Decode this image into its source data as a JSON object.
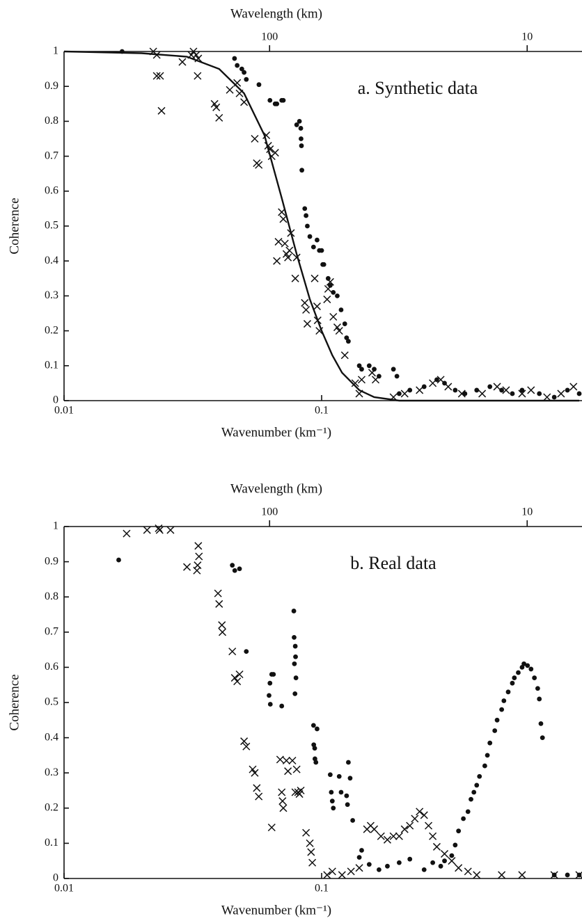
{
  "chart_data": [
    {
      "type": "scatter",
      "annotation": "a. Synthetic data",
      "x_label": "Wavenumber (km⁻¹)",
      "x2_label": "Wavelength (km)",
      "y_label": "Coherence",
      "xscale": "log",
      "xlim": [
        0.01,
        1
      ],
      "xticks": [
        0.01,
        0.1
      ],
      "x2ticks": [
        {
          "value": 0.0628,
          "label": "100"
        },
        {
          "value": 0.628,
          "label": "10"
        }
      ],
      "ylim": [
        0,
        1
      ],
      "yticks": [
        0,
        0.1,
        0.2,
        0.3,
        0.4,
        0.5,
        0.6,
        0.7,
        0.8,
        0.9,
        1
      ],
      "series": [
        {
          "marker": "x",
          "color": "#111111",
          "x": [
            0.0222,
            0.0229,
            0.0229,
            0.0236,
            0.0239,
            0.0288,
            0.0312,
            0.0318,
            0.0326,
            0.0332,
            0.033,
            0.0384,
            0.039,
            0.04,
            0.044,
            0.047,
            0.048,
            0.05,
            0.055,
            0.056,
            0.057,
            0.061,
            0.062,
            0.063,
            0.064,
            0.066,
            0.068,
            0.067,
            0.07,
            0.071,
            0.072,
            0.073,
            0.074,
            0.075,
            0.076,
            0.079,
            0.08,
            0.086,
            0.087,
            0.088,
            0.094,
            0.096,
            0.0965,
            0.098,
            0.105,
            0.106,
            0.108,
            0.111,
            0.115,
            0.117,
            0.123,
            0.135,
            0.14,
            0.143,
            0.157,
            0.162,
            0.19,
            0.21,
            0.24,
            0.27,
            0.29,
            0.31,
            0.35,
            0.42,
            0.48,
            0.52,
            0.6,
            0.65,
            0.75,
            0.85,
            0.95
          ],
          "values": [
            1.0,
            0.99,
            0.93,
            0.93,
            0.83,
            0.97,
            0.99,
            1.0,
            0.99,
            0.98,
            0.93,
            0.85,
            0.84,
            0.81,
            0.89,
            0.91,
            0.88,
            0.855,
            0.75,
            0.68,
            0.675,
            0.76,
            0.73,
            0.72,
            0.7,
            0.71,
            0.455,
            0.4,
            0.54,
            0.52,
            0.45,
            0.42,
            0.41,
            0.43,
            0.48,
            0.35,
            0.41,
            0.28,
            0.26,
            0.22,
            0.35,
            0.27,
            0.23,
            0.2,
            0.29,
            0.32,
            0.34,
            0.24,
            0.21,
            0.2,
            0.13,
            0.05,
            0.02,
            0.06,
            0.08,
            0.06,
            0.01,
            0.02,
            0.03,
            0.05,
            0.06,
            0.04,
            0.02,
            0.02,
            0.04,
            0.03,
            0.02,
            0.03,
            0.01,
            0.02,
            0.04
          ]
        },
        {
          "marker": "dot",
          "color": "#111111",
          "x": [
            0.0168,
            0.0459,
            0.047,
            0.049,
            0.05,
            0.051,
            0.0571,
            0.063,
            0.066,
            0.067,
            0.07,
            0.071,
            0.08,
            0.082,
            0.083,
            0.0832,
            0.0835,
            0.0838,
            0.086,
            0.087,
            0.088,
            0.09,
            0.093,
            0.096,
            0.098,
            0.1,
            0.101,
            0.102,
            0.106,
            0.108,
            0.111,
            0.115,
            0.119,
            0.123,
            0.125,
            0.127,
            0.14,
            0.143,
            0.153,
            0.16,
            0.167,
            0.19,
            0.196,
            0.2,
            0.22,
            0.25,
            0.28,
            0.3,
            0.33,
            0.36,
            0.4,
            0.45,
            0.5,
            0.55,
            0.6,
            0.7,
            0.8,
            0.9,
            1.0
          ],
          "values": [
            1.0,
            0.98,
            0.96,
            0.95,
            0.94,
            0.92,
            0.905,
            0.86,
            0.85,
            0.85,
            0.86,
            0.86,
            0.79,
            0.8,
            0.78,
            0.75,
            0.73,
            0.66,
            0.55,
            0.53,
            0.5,
            0.47,
            0.44,
            0.46,
            0.43,
            0.43,
            0.39,
            0.39,
            0.35,
            0.33,
            0.31,
            0.3,
            0.26,
            0.22,
            0.18,
            0.17,
            0.1,
            0.09,
            0.1,
            0.09,
            0.07,
            0.09,
            0.07,
            0.02,
            0.03,
            0.04,
            0.06,
            0.05,
            0.03,
            0.02,
            0.03,
            0.04,
            0.03,
            0.02,
            0.03,
            0.02,
            0.01,
            0.03,
            0.02
          ]
        },
        {
          "marker": "line",
          "color": "#111111",
          "x": [
            0.01,
            0.02,
            0.03,
            0.04,
            0.05,
            0.06,
            0.07,
            0.08,
            0.09,
            0.1,
            0.11,
            0.12,
            0.14,
            0.16,
            0.2,
            1.0
          ],
          "values": [
            1.0,
            0.995,
            0.985,
            0.95,
            0.88,
            0.76,
            0.58,
            0.42,
            0.29,
            0.2,
            0.13,
            0.08,
            0.03,
            0.01,
            0,
            0
          ]
        }
      ]
    },
    {
      "type": "scatter",
      "annotation": "b. Real data",
      "x_label": "Wavenumber (km⁻¹)",
      "x2_label": "Wavelength (km)",
      "y_label": "Coherence",
      "xscale": "log",
      "xlim": [
        0.01,
        1
      ],
      "xticks": [
        0.01,
        0.1
      ],
      "x2ticks": [
        {
          "value": 0.0628,
          "label": "100"
        },
        {
          "value": 0.628,
          "label": "10"
        }
      ],
      "ylim": [
        0,
        1
      ],
      "yticks": [
        0,
        0.1,
        0.2,
        0.3,
        0.4,
        0.5,
        0.6,
        0.7,
        0.8,
        0.9,
        1
      ],
      "series": [
        {
          "marker": "x",
          "color": "#111111",
          "x": [
            0.0175,
            0.021,
            0.0233,
            0.0235,
            0.0259,
            0.03,
            0.033,
            0.0332,
            0.0334,
            0.0328,
            0.0396,
            0.04,
            0.041,
            0.0412,
            0.045,
            0.046,
            0.047,
            0.048,
            0.05,
            0.051,
            0.054,
            0.055,
            0.056,
            0.057,
            0.064,
            0.069,
            0.07,
            0.0705,
            0.071,
            0.073,
            0.074,
            0.077,
            0.079,
            0.081,
            0.082,
            0.083,
            0.08,
            0.087,
            0.09,
            0.091,
            0.092,
            0.105,
            0.11,
            0.12,
            0.13,
            0.14,
            0.15,
            0.155,
            0.16,
            0.17,
            0.18,
            0.19,
            0.2,
            0.21,
            0.22,
            0.23,
            0.24,
            0.25,
            0.26,
            0.27,
            0.28,
            0.3,
            0.32,
            0.34,
            0.37,
            0.4,
            0.5,
            0.6,
            0.8,
            1.0
          ],
          "values": [
            0.98,
            0.99,
            0.995,
            0.99,
            0.99,
            0.885,
            0.89,
            0.945,
            0.915,
            0.875,
            0.81,
            0.78,
            0.72,
            0.7,
            0.645,
            0.57,
            0.56,
            0.58,
            0.39,
            0.375,
            0.31,
            0.3,
            0.257,
            0.233,
            0.145,
            0.338,
            0.245,
            0.22,
            0.2,
            0.335,
            0.305,
            0.335,
            0.245,
            0.245,
            0.24,
            0.25,
            0.31,
            0.13,
            0.1,
            0.075,
            0.045,
            0.01,
            0.02,
            0.01,
            0.02,
            0.03,
            0.14,
            0.15,
            0.14,
            0.12,
            0.11,
            0.12,
            0.12,
            0.14,
            0.15,
            0.17,
            0.19,
            0.18,
            0.15,
            0.12,
            0.09,
            0.07,
            0.05,
            0.03,
            0.02,
            0.01,
            0.01,
            0.01,
            0.01,
            0.01
          ]
        },
        {
          "marker": "dot",
          "color": "#111111",
          "x": [
            0.0163,
            0.045,
            0.046,
            0.048,
            0.051,
            0.0625,
            0.063,
            0.064,
            0.065,
            0.0632,
            0.07,
            0.078,
            0.0782,
            0.079,
            0.0792,
            0.0784,
            0.0795,
            0.0788,
            0.093,
            0.096,
            0.0932,
            0.094,
            0.0942,
            0.095,
            0.108,
            0.109,
            0.11,
            0.111,
            0.117,
            0.119,
            0.125,
            0.126,
            0.127,
            0.129,
            0.132,
            0.14,
            0.143,
            0.153,
            0.167,
            0.18,
            0.2,
            0.22,
            0.25,
            0.27,
            0.29,
            0.3,
            0.32,
            0.33,
            0.34,
            0.355,
            0.37,
            0.38,
            0.39,
            0.4,
            0.41,
            0.43,
            0.44,
            0.45,
            0.47,
            0.48,
            0.5,
            0.51,
            0.53,
            0.55,
            0.56,
            0.58,
            0.6,
            0.61,
            0.63,
            0.65,
            0.67,
            0.69,
            0.7,
            0.71,
            0.72,
            0.8,
            0.9,
            1.0
          ],
          "values": [
            0.905,
            0.89,
            0.875,
            0.88,
            0.645,
            0.52,
            0.555,
            0.58,
            0.58,
            0.495,
            0.49,
            0.76,
            0.685,
            0.66,
            0.63,
            0.61,
            0.57,
            0.525,
            0.435,
            0.425,
            0.38,
            0.37,
            0.34,
            0.33,
            0.295,
            0.245,
            0.22,
            0.2,
            0.29,
            0.245,
            0.235,
            0.21,
            0.33,
            0.285,
            0.165,
            0.06,
            0.08,
            0.04,
            0.025,
            0.035,
            0.045,
            0.055,
            0.025,
            0.045,
            0.035,
            0.05,
            0.065,
            0.095,
            0.135,
            0.17,
            0.19,
            0.225,
            0.245,
            0.265,
            0.29,
            0.32,
            0.35,
            0.385,
            0.42,
            0.45,
            0.48,
            0.505,
            0.53,
            0.555,
            0.57,
            0.585,
            0.6,
            0.61,
            0.605,
            0.595,
            0.57,
            0.54,
            0.51,
            0.44,
            0.4,
            0.01,
            0.01,
            0.01
          ]
        }
      ]
    }
  ]
}
